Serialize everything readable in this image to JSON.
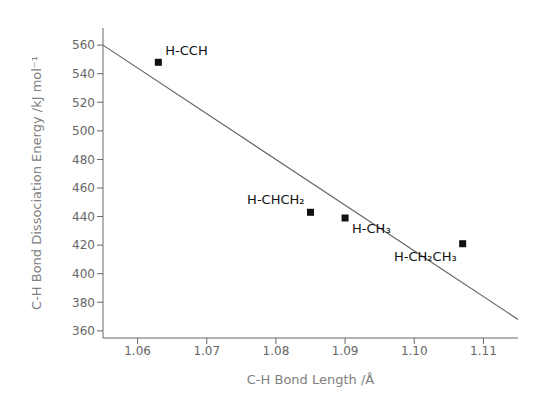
{
  "chart_data": {
    "type": "scatter",
    "x": [
      1.063,
      1.085,
      1.09,
      1.107
    ],
    "values": [
      548,
      443,
      439,
      421
    ],
    "labels": [
      "H-CCH",
      "H-CHCH₂",
      "H-CH₃",
      "H-CH₂CH₃"
    ],
    "color": "#111111",
    "marker": "square",
    "trendline": {
      "x": [
        1.055,
        1.115
      ],
      "values": [
        560,
        368
      ],
      "color": "#666666"
    },
    "xlim": [
      1.055,
      1.115
    ],
    "ylim": [
      355,
      572
    ],
    "xticks": [
      1.06,
      1.07,
      1.08,
      1.09,
      {
        "value": 1.1,
        "label": "1.10"
      },
      1.11
    ],
    "yticks": [
      360,
      380,
      400,
      420,
      440,
      460,
      480,
      500,
      520,
      540,
      560
    ],
    "xlabel": "C-H Bond Length /Å",
    "ylabel": "C-H Bond Dissociation Energy /kJ mol⁻¹",
    "grid": false
  }
}
